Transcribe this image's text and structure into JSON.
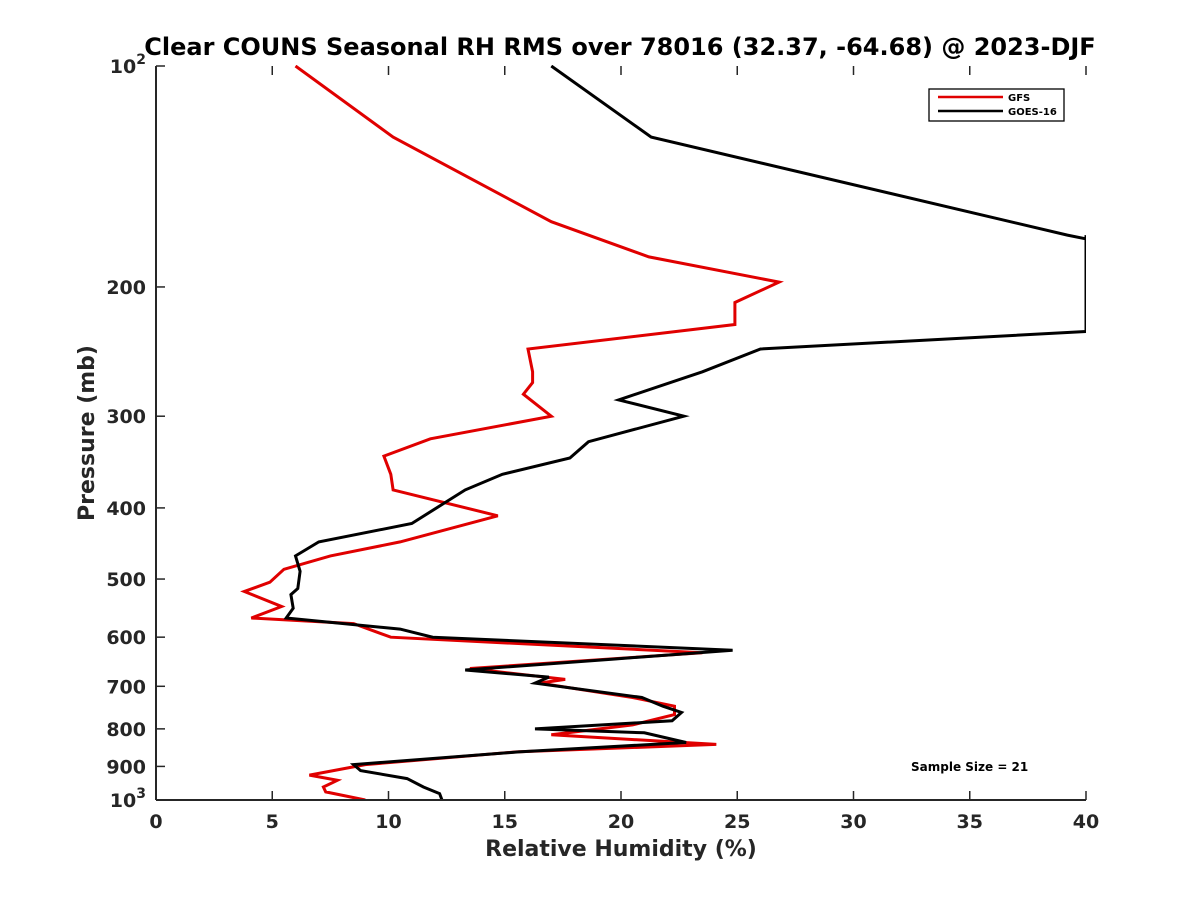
{
  "chart_data": {
    "type": "line",
    "title": "Clear COUNS Seasonal RH RMS over 78016 (32.37, -64.68) @ 2023-DJF",
    "xlabel": "Relative Humidity (%)",
    "ylabel": "Pressure (mb)",
    "xlim": [
      0,
      40
    ],
    "ylim": [
      100,
      1000
    ],
    "yscale": "log",
    "y_reversed": true,
    "xticks": [
      0,
      5,
      10,
      15,
      20,
      25,
      30,
      35,
      40
    ],
    "xtick_labels": [
      "0",
      "5",
      "10",
      "15",
      "20",
      "25",
      "30",
      "35",
      "40"
    ],
    "yticks_plain": [
      {
        "value": 200,
        "label": "200"
      },
      {
        "value": 300,
        "label": "300"
      },
      {
        "value": 400,
        "label": "400"
      },
      {
        "value": 500,
        "label": "500"
      },
      {
        "value": 600,
        "label": "600"
      },
      {
        "value": 700,
        "label": "700"
      },
      {
        "value": 800,
        "label": "800"
      },
      {
        "value": 900,
        "label": "900"
      }
    ],
    "yticks_power": [
      {
        "value": 100,
        "base": "10",
        "exponent": "2"
      },
      {
        "value": 1000,
        "base": "10",
        "exponent": "3"
      }
    ],
    "grid": false,
    "legend_position": "top-right",
    "annotation": "Sample Size = 21",
    "series": [
      {
        "name": "GFS",
        "color": "#e00000",
        "points": [
          [
            6.0,
            100
          ],
          [
            10.2,
            125
          ],
          [
            17.0,
            163
          ],
          [
            21.2,
            182
          ],
          [
            26.8,
            197
          ],
          [
            24.9,
            210
          ],
          [
            24.9,
            225
          ],
          [
            16.0,
            243
          ],
          [
            16.2,
            261
          ],
          [
            16.2,
            270
          ],
          [
            15.8,
            280
          ],
          [
            17.0,
            300
          ],
          [
            11.8,
            322
          ],
          [
            9.8,
            340
          ],
          [
            10.1,
            360
          ],
          [
            10.2,
            378
          ],
          [
            14.7,
            410
          ],
          [
            10.5,
            445
          ],
          [
            7.5,
            465
          ],
          [
            5.5,
            485
          ],
          [
            4.9,
            505
          ],
          [
            3.8,
            520
          ],
          [
            5.4,
            545
          ],
          [
            4.1,
            565
          ],
          [
            8.5,
            575
          ],
          [
            10.1,
            600
          ],
          [
            23.5,
            630
          ],
          [
            13.5,
            662
          ],
          [
            17.6,
            685
          ],
          [
            16.5,
            693
          ],
          [
            20.5,
            725
          ],
          [
            22.3,
            745
          ],
          [
            22.3,
            765
          ],
          [
            20.5,
            790
          ],
          [
            17.0,
            815
          ],
          [
            24.1,
            840
          ],
          [
            15.5,
            860
          ],
          [
            9.0,
            895
          ],
          [
            6.6,
            925
          ],
          [
            7.8,
            940
          ],
          [
            7.2,
            960
          ],
          [
            7.3,
            975
          ],
          [
            9.0,
            1000
          ]
        ]
      },
      {
        "name": "GOES-16",
        "color": "#000000",
        "points": [
          [
            17.0,
            100
          ],
          [
            21.3,
            125
          ],
          [
            39.2,
            170
          ],
          [
            40.0,
            172
          ],
          [
            40.0,
            170
          ],
          [
            40.0,
            230
          ],
          [
            26.0,
            243
          ],
          [
            23.5,
            261
          ],
          [
            19.9,
            285
          ],
          [
            22.7,
            300
          ],
          [
            18.6,
            325
          ],
          [
            17.8,
            342
          ],
          [
            14.9,
            360
          ],
          [
            13.3,
            378
          ],
          [
            11.0,
            420
          ],
          [
            7.0,
            445
          ],
          [
            6.0,
            465
          ],
          [
            6.2,
            488
          ],
          [
            6.1,
            515
          ],
          [
            5.8,
            525
          ],
          [
            5.9,
            548
          ],
          [
            5.6,
            565
          ],
          [
            10.5,
            585
          ],
          [
            11.9,
            600
          ],
          [
            24.8,
            625
          ],
          [
            19.6,
            643
          ],
          [
            13.3,
            665
          ],
          [
            16.9,
            680
          ],
          [
            16.3,
            693
          ],
          [
            20.9,
            725
          ],
          [
            21.8,
            745
          ],
          [
            22.6,
            760
          ],
          [
            22.2,
            780
          ],
          [
            16.3,
            800
          ],
          [
            21.0,
            810
          ],
          [
            22.8,
            835
          ],
          [
            15.6,
            860
          ],
          [
            8.5,
            895
          ],
          [
            8.8,
            912
          ],
          [
            10.8,
            935
          ],
          [
            11.5,
            960
          ],
          [
            12.2,
            980
          ],
          [
            12.3,
            1000
          ]
        ]
      }
    ]
  }
}
